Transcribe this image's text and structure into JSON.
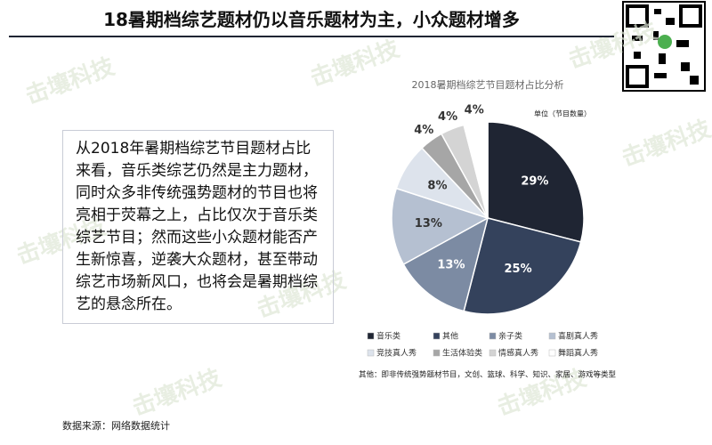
{
  "header": {
    "title": "18暑期档综艺题材仍以音乐题材为主，小众题材增多"
  },
  "body": {
    "text": "从2018年暑期档综艺节目题材占比来看，音乐类综艺仍然是主力题材，同时众多非传统强势题材的节目也将亮相于荧幕之上，占比仅次于音乐类综艺节目；然而这些小众题材能否产生新惊喜，逆袭大众题材，甚至带动综艺市场新风口，也将会是暑期档综艺的悬念所在。"
  },
  "watermark": "击壤科技",
  "chart_data": {
    "type": "pie",
    "title": "2018暑期档综艺节目题材占比分析",
    "unit": "单位（节目数量）",
    "categories": [
      "音乐类",
      "其他",
      "亲子类",
      "喜剧真人秀",
      "竞技真人秀",
      "生活体验类",
      "情感真人秀",
      "舞蹈真人秀"
    ],
    "values": [
      29,
      25,
      13,
      13,
      8,
      4,
      4,
      4
    ],
    "value_labels": [
      "29%",
      "25%",
      "13%",
      "13%",
      "8%",
      "4%",
      "4%",
      "4%"
    ],
    "colors": [
      "#1f2533",
      "#34425c",
      "#7c8ba3",
      "#b5c0d1",
      "#dde3ec",
      "#a6a6a6",
      "#d4d4d4",
      "#ffffff"
    ],
    "legend": "bottom",
    "note": "其他：即非传统强势题材节目，文创、篮球、科学、知识、家居、游戏等类型"
  },
  "footer": {
    "source": "数据来源：网络数据统计"
  }
}
